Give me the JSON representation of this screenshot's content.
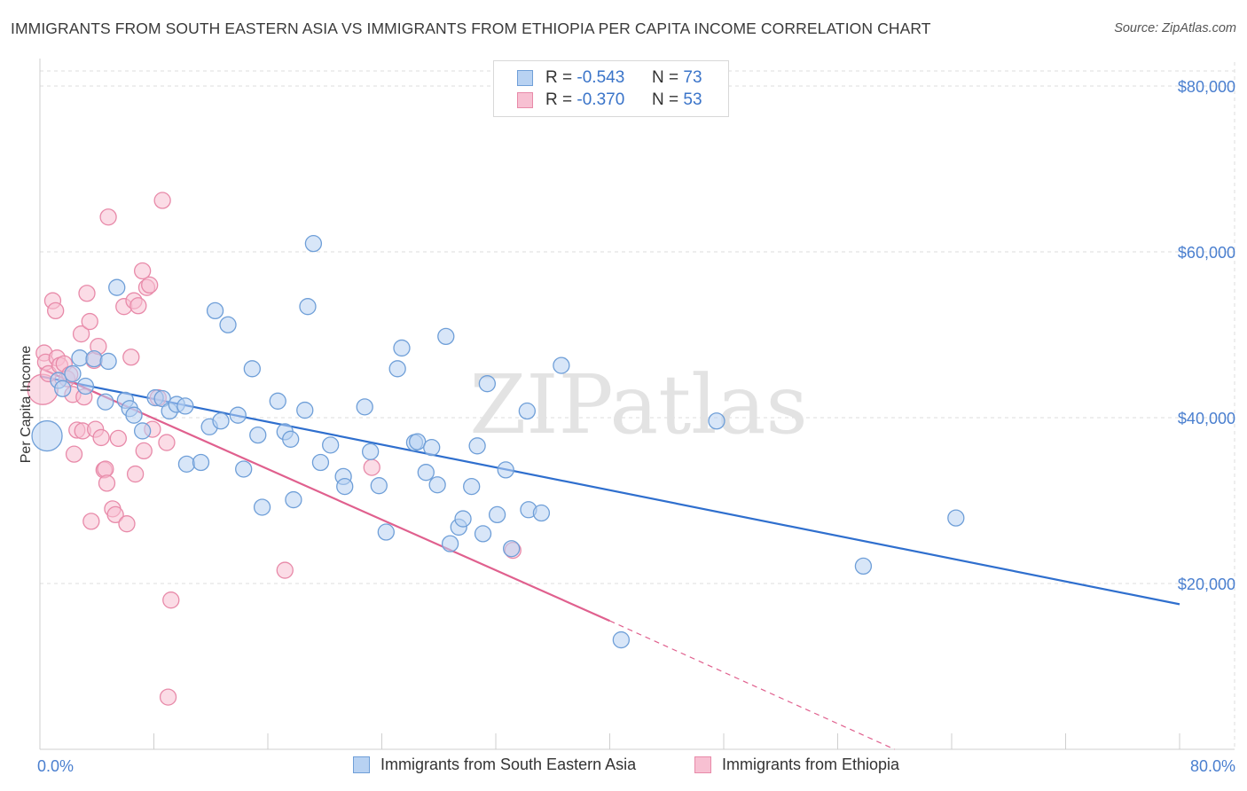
{
  "title": "IMMIGRANTS FROM SOUTH EASTERN ASIA VS IMMIGRANTS FROM ETHIOPIA PER CAPITA INCOME CORRELATION CHART",
  "source": "Source: ZipAtlas.com",
  "watermark": "ZIPatlas",
  "legend_top": {
    "series1": {
      "r_label": "R =",
      "r_value": "-0.543",
      "n_label": "N =",
      "n_value": "73"
    },
    "series2": {
      "r_label": "R =",
      "r_value": "-0.370",
      "n_label": "N =",
      "n_value": "53"
    }
  },
  "legend_bottom": {
    "series1": "Immigrants from South Eastern Asia",
    "series2": "Immigrants from Ethiopia"
  },
  "colors": {
    "blue_fill": "#b8d2f2",
    "blue_stroke": "#6f9fd8",
    "blue_line": "#2f6fce",
    "pink_fill": "#f7c0d2",
    "pink_stroke": "#e88aa9",
    "pink_line": "#e0608e",
    "axis_text": "#4a7fcf",
    "grid": "#dddddd"
  },
  "chart_data": {
    "type": "scatter",
    "title": "IMMIGRANTS FROM SOUTH EASTERN ASIA VS IMMIGRANTS FROM ETHIOPIA PER CAPITA INCOME CORRELATION CHART",
    "xlabel": "",
    "ylabel": "Per Capita Income",
    "xlim": [
      0,
      80
    ],
    "ylim": [
      0,
      80000
    ],
    "x_tick_labels": [
      "0.0%",
      "80.0%"
    ],
    "y_ticks": [
      20000,
      40000,
      60000,
      80000
    ],
    "y_tick_labels": [
      "$20,000",
      "$40,000",
      "$60,000",
      "$80,000"
    ],
    "grid": true,
    "series": [
      {
        "name": "Immigrants from South Eastern Asia",
        "r": -0.543,
        "n": 73,
        "trend": {
          "x": [
            0,
            80
          ],
          "y": [
            45000,
            17500
          ]
        },
        "points": [
          [
            0.5,
            37800,
            "big"
          ],
          [
            1.3,
            44500
          ],
          [
            1.6,
            43500
          ],
          [
            2.3,
            45300
          ],
          [
            2.8,
            47200
          ],
          [
            3.2,
            43800
          ],
          [
            3.8,
            47100
          ],
          [
            4.8,
            46800
          ],
          [
            4.6,
            41900
          ],
          [
            5.4,
            55700
          ],
          [
            6.0,
            42100
          ],
          [
            6.3,
            41100
          ],
          [
            6.6,
            40300
          ],
          [
            7.2,
            38400
          ],
          [
            8.1,
            42400
          ],
          [
            8.6,
            42300
          ],
          [
            9.1,
            40800
          ],
          [
            9.6,
            41600
          ],
          [
            10.2,
            41400
          ],
          [
            10.3,
            34400
          ],
          [
            11.3,
            34600
          ],
          [
            11.9,
            38900
          ],
          [
            12.3,
            52900
          ],
          [
            12.7,
            39600
          ],
          [
            13.2,
            51200
          ],
          [
            13.9,
            40300
          ],
          [
            14.3,
            33800
          ],
          [
            14.9,
            45900
          ],
          [
            15.3,
            37900
          ],
          [
            15.6,
            29200
          ],
          [
            16.7,
            42000
          ],
          [
            17.2,
            38300
          ],
          [
            17.6,
            37400
          ],
          [
            17.8,
            30100
          ],
          [
            18.6,
            40900
          ],
          [
            18.8,
            53400
          ],
          [
            19.2,
            61000
          ],
          [
            19.7,
            34600
          ],
          [
            20.4,
            36700
          ],
          [
            21.3,
            32900
          ],
          [
            21.4,
            31700
          ],
          [
            22.8,
            41300
          ],
          [
            23.2,
            35900
          ],
          [
            23.8,
            31800
          ],
          [
            24.3,
            26200
          ],
          [
            25.1,
            45900
          ],
          [
            25.4,
            48400
          ],
          [
            26.3,
            37000
          ],
          [
            26.5,
            37100
          ],
          [
            27.1,
            33400
          ],
          [
            27.5,
            36400
          ],
          [
            27.9,
            31900
          ],
          [
            28.5,
            49800
          ],
          [
            28.8,
            24800
          ],
          [
            29.4,
            26800
          ],
          [
            29.7,
            27800
          ],
          [
            30.3,
            31700
          ],
          [
            30.7,
            36600
          ],
          [
            31.1,
            26000
          ],
          [
            31.4,
            44100
          ],
          [
            32.1,
            28300
          ],
          [
            32.7,
            33700
          ],
          [
            33.1,
            24200
          ],
          [
            34.2,
            40800
          ],
          [
            34.3,
            28900
          ],
          [
            35.2,
            28500
          ],
          [
            36.6,
            46300
          ],
          [
            40.8,
            13200
          ],
          [
            47.5,
            39600
          ],
          [
            57.8,
            22100
          ],
          [
            64.3,
            27900
          ]
        ]
      },
      {
        "name": "Immigrants from Ethiopia",
        "r": -0.37,
        "n": 53,
        "trend": {
          "x": [
            0,
            40
          ],
          "y": [
            46000,
            15500
          ]
        },
        "trend_dashed": {
          "x": [
            40,
            60
          ],
          "y": [
            15500,
            0
          ]
        },
        "points": [
          [
            0.2,
            43400,
            "big"
          ],
          [
            0.3,
            47800
          ],
          [
            0.4,
            46700
          ],
          [
            0.6,
            45300
          ],
          [
            0.9,
            54100
          ],
          [
            1.1,
            52900
          ],
          [
            1.2,
            47200
          ],
          [
            1.4,
            46300
          ],
          [
            1.7,
            46500
          ],
          [
            1.9,
            44700
          ],
          [
            2.1,
            45200
          ],
          [
            2.3,
            42800
          ],
          [
            2.4,
            35600
          ],
          [
            2.6,
            38500
          ],
          [
            2.9,
            50100
          ],
          [
            3.0,
            38400
          ],
          [
            3.1,
            42500
          ],
          [
            3.3,
            55000
          ],
          [
            3.5,
            51600
          ],
          [
            3.6,
            27500
          ],
          [
            3.8,
            46900
          ],
          [
            3.9,
            38600
          ],
          [
            4.1,
            48600
          ],
          [
            4.3,
            37600
          ],
          [
            4.5,
            33700
          ],
          [
            4.6,
            33800
          ],
          [
            4.7,
            32100
          ],
          [
            4.8,
            64200
          ],
          [
            5.1,
            29000
          ],
          [
            5.3,
            28300
          ],
          [
            5.5,
            37500
          ],
          [
            5.9,
            53400
          ],
          [
            6.1,
            27200
          ],
          [
            6.4,
            47300
          ],
          [
            6.6,
            54100
          ],
          [
            6.7,
            33200
          ],
          [
            6.9,
            53500
          ],
          [
            7.2,
            57700
          ],
          [
            7.3,
            36000
          ],
          [
            7.5,
            55700
          ],
          [
            7.7,
            56000
          ],
          [
            7.9,
            38600
          ],
          [
            8.3,
            42400
          ],
          [
            8.6,
            66200
          ],
          [
            8.9,
            37000
          ],
          [
            9.2,
            18000
          ],
          [
            9.0,
            6300
          ],
          [
            17.2,
            21600
          ],
          [
            23.3,
            34000
          ],
          [
            33.2,
            24000
          ]
        ]
      }
    ]
  }
}
